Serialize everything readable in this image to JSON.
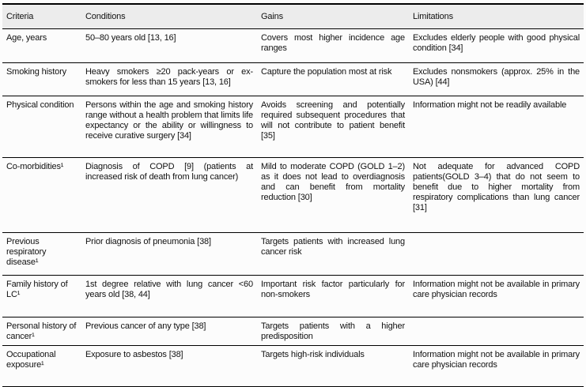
{
  "colors": {
    "page_background": "#fcfcfc",
    "header_background": "#ececec",
    "border": "#000000",
    "text": "#111111"
  },
  "table": {
    "columns": [
      "Criteria",
      "Conditions",
      "Gains",
      "Limitations"
    ],
    "rows": [
      {
        "criteria": "Age, years",
        "conditions": "50–80 years old [13, 16]",
        "gains": "Covers most higher incidence age ranges",
        "limitations": "Excludes elderly people with good physical condition [34]"
      },
      {
        "criteria": "Smoking history",
        "conditions": "Heavy smokers ≥20 pack-years or ex-smokers for less than 15 years [13, 16]",
        "gains": "Capture the population most at risk",
        "limitations": "Excludes nonsmokers (approx. 25% in the USA) [44]"
      },
      {
        "criteria": "Physical condition",
        "conditions": "Persons within the age and smoking history range without a health problem that limits life expectancy or the ability or willingness to receive curative surgery [34]",
        "gains": "Avoids screening and potentially required subsequent procedures that will not contribute to patient benefit [35]",
        "limitations": "Information might not be readily available"
      },
      {
        "criteria": "Co-morbidities¹",
        "conditions": "Diagnosis of COPD [9] (patients at increased risk of death from lung cancer)",
        "gains": "Mild to moderate COPD (GOLD 1–2) as it does not lead to overdiagnosis and can benefit from mortality reduction [30]",
        "limitations": "Not adequate for advanced COPD patients(GOLD 3–4) that do not seem to benefit due to higher mortality from respiratory complications than lung cancer [31]"
      },
      {
        "criteria": "Previous respiratory disease¹",
        "conditions": "Prior diagnosis of pneumonia [38]",
        "gains": "Targets patients with increased lung cancer risk",
        "limitations": ""
      },
      {
        "criteria": "Family history of LC¹",
        "conditions": "1st degree relative with lung cancer <60 years old [38, 44]",
        "gains": "Important risk factor particularly for non-smokers",
        "limitations": "Information might not be available in primary care physician records"
      },
      {
        "criteria": "Personal history of cancer¹",
        "conditions": "Previous cancer of any type [38]",
        "gains": "Targets patients with a higher predisposition",
        "limitations": ""
      },
      {
        "criteria": "Occupational exposure¹",
        "conditions": "Exposure to asbestos [38]",
        "gains": "Targets high-risk individuals",
        "limitations": "Information might not be available in primary care physician records"
      }
    ]
  }
}
